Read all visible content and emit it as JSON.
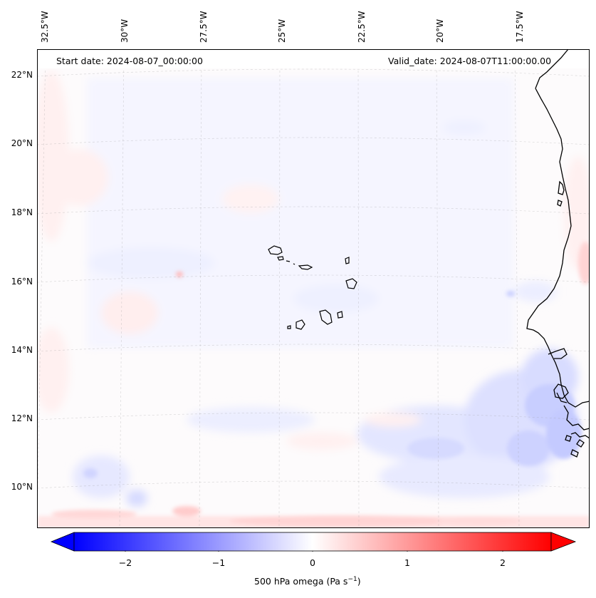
{
  "header": {
    "start_date": "Start date: 2024-08-07_00:00:00",
    "valid_date": "Valid_date: 2024-08-07T11:00:00.00"
  },
  "map": {
    "lon_labels": [
      "32.5°W",
      "30°W",
      "27.5°W",
      "25°W",
      "22.5°W",
      "20°W",
      "17.5°W"
    ],
    "lat_labels": [
      "22°N",
      "20°N",
      "18°N",
      "16°N",
      "14°N",
      "12°N",
      "10°N"
    ],
    "field": "500 hPa omega",
    "extent": {
      "lon_min": -32.7,
      "lon_max": -15.6,
      "lat_min": 8.9,
      "lat_max": 22.8
    }
  },
  "colorbar": {
    "label_prefix": "500 hPa omega (Pa s",
    "label_exp": "−1",
    "label_suffix": ")",
    "ticks": [
      "−2",
      "−1",
      "0",
      "1",
      "2"
    ],
    "tick_values": [
      -2,
      -1,
      0,
      1,
      2
    ],
    "range": [
      -2.6,
      2.6
    ],
    "colors": {
      "low": "#0000ff",
      "mid": "#ffffff",
      "high": "#ff0000"
    }
  }
}
